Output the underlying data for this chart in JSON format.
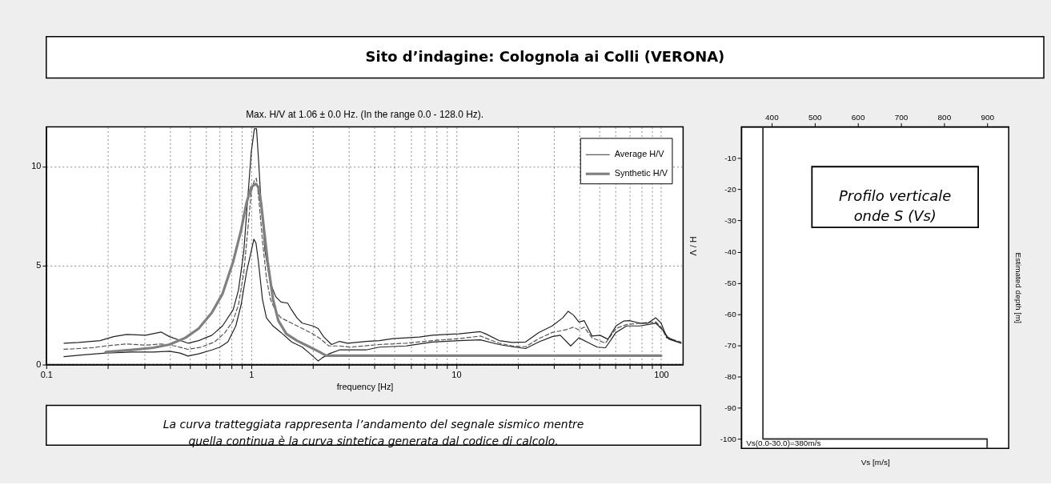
{
  "chart_data": [
    {
      "type": "other",
      "title": "Sito d’indagine: Colognola ai Colli (VERONA)"
    },
    {
      "type": "line",
      "title": "Max. H/V at 1.06 ± 0.0 Hz. (In the range 0.0 - 128.0 Hz).",
      "xlabel": "frequency [Hz]",
      "ylabel": "H / V",
      "log": "x",
      "xlim": [
        0.1,
        128
      ],
      "ylim": [
        0,
        12
      ],
      "xticks": [
        0.1,
        {
          "value": 0.2,
          "label": null
        },
        {
          "value": 0.3,
          "label": null
        },
        {
          "value": 0.4,
          "label": null
        },
        {
          "value": 0.5,
          "label": null
        },
        {
          "value": 0.6,
          "label": null
        },
        {
          "value": 0.7,
          "label": null
        },
        {
          "value": 0.8,
          "label": null
        },
        {
          "value": 0.9,
          "label": null
        },
        1,
        {
          "value": 2,
          "label": null
        },
        {
          "value": 3,
          "label": null
        },
        {
          "value": 4,
          "label": null
        },
        {
          "value": 5,
          "label": null
        },
        {
          "value": 6,
          "label": null
        },
        {
          "value": 7,
          "label": null
        },
        {
          "value": 8,
          "label": null
        },
        {
          "value": 9,
          "label": null
        },
        10,
        {
          "value": 20,
          "label": null
        },
        {
          "value": 30,
          "label": null
        },
        {
          "value": 40,
          "label": null
        },
        {
          "value": 50,
          "label": null
        },
        {
          "value": 60,
          "label": null
        },
        {
          "value": 70,
          "label": null
        },
        {
          "value": 80,
          "label": null
        },
        {
          "value": 90,
          "label": null
        },
        100
      ],
      "yticks": [
        0,
        5,
        10
      ],
      "grid": true,
      "legend": "top right",
      "line_style": "solid",
      "series": [
        {
          "name": "Average H/V",
          "color": "#555555",
          "line_style": "dashed",
          "x": [
            0.122,
            0.144,
            0.168,
            0.195,
            0.247,
            0.305,
            0.364,
            0.423,
            0.491,
            0.57,
            0.662,
            0.746,
            0.816,
            0.867,
            0.92,
            0.962,
            1.0,
            1.036,
            1.06,
            1.09,
            1.134,
            1.186,
            1.24,
            1.316,
            1.397,
            1.574,
            1.775,
            2.0,
            2.187,
            2.392,
            2.696,
            3.038,
            4.22,
            5.69,
            7.66,
            10.33,
            13.12,
            16.18,
            18.78,
            21.8,
            25.3,
            29.4,
            34.1,
            37.4,
            39.7,
            42.1,
            46.0,
            53.5,
            60.2,
            67.8,
            78.7,
            94.2,
            100,
            106.2,
            125
          ],
          "values": [
            0.77,
            0.81,
            0.85,
            0.94,
            1.04,
            0.98,
            1.04,
            0.94,
            0.77,
            0.88,
            1.14,
            1.62,
            2.22,
            3.03,
            4.65,
            6.8,
            8.69,
            9.3,
            9.4,
            8.3,
            6.26,
            4.38,
            3.3,
            2.69,
            2.36,
            2.09,
            1.82,
            1.55,
            1.28,
            0.94,
            0.94,
            0.88,
            1.01,
            1.08,
            1.21,
            1.31,
            1.44,
            1.08,
            0.94,
            0.9,
            1.31,
            1.62,
            1.75,
            1.89,
            1.75,
            1.89,
            1.35,
            1.08,
            1.82,
            2.02,
            2.09,
            2.15,
            1.89,
            1.35,
            1.14
          ]
        },
        {
          "color": "#222222",
          "x": [
            0.122,
            0.144,
            0.183,
            0.213,
            0.247,
            0.305,
            0.364,
            0.399,
            0.491,
            0.554,
            0.643,
            0.724,
            0.816,
            0.867,
            0.92,
            0.962,
            1.0,
            1.036,
            1.061,
            1.084,
            1.117,
            1.168,
            1.24,
            1.316,
            1.397,
            1.506,
            1.574,
            1.671,
            1.775,
            1.884,
            2.0,
            2.122,
            2.253,
            2.465,
            2.696,
            2.948,
            3.63,
            4.22,
            4.9,
            5.69,
            6.6,
            7.66,
            8.9,
            10.33,
            12.0,
            13.12,
            13.93,
            16.18,
            18.78,
            21.8,
            25.3,
            29.4,
            33.1,
            35.2,
            37.4,
            39.7,
            42.1,
            46.0,
            50.3,
            55.0,
            60.2,
            65.8,
            70.0,
            78.7,
            86.1,
            94.2,
            100,
            106.2,
            116.2,
            125
          ],
          "values": [
            1.08,
            1.12,
            1.21,
            1.41,
            1.52,
            1.48,
            1.64,
            1.41,
            1.08,
            1.21,
            1.48,
            1.95,
            2.76,
            3.77,
            5.72,
            8.42,
            10.71,
            11.9,
            11.9,
            10.44,
            8.15,
            5.72,
            4.11,
            3.43,
            3.16,
            3.1,
            2.76,
            2.36,
            2.09,
            2.02,
            1.95,
            1.82,
            1.41,
            1.01,
            1.17,
            1.08,
            1.17,
            1.21,
            1.31,
            1.35,
            1.39,
            1.48,
            1.52,
            1.55,
            1.62,
            1.66,
            1.55,
            1.21,
            1.12,
            1.14,
            1.62,
            1.95,
            2.36,
            2.69,
            2.49,
            2.15,
            2.22,
            1.44,
            1.48,
            1.28,
            1.95,
            2.2,
            2.22,
            2.09,
            2.09,
            2.36,
            2.09,
            1.41,
            1.21,
            1.08
          ]
        },
        {
          "color": "#222222",
          "x": [
            0.122,
            0.144,
            0.195,
            0.262,
            0.333,
            0.399,
            0.449,
            0.491,
            0.554,
            0.643,
            0.703,
            0.769,
            0.841,
            0.893,
            0.948,
            1.0,
            1.03,
            1.055,
            1.084,
            1.134,
            1.186,
            1.277,
            1.397,
            1.574,
            1.775,
            1.941,
            2.122,
            2.22,
            2.392,
            2.696,
            3.038,
            3.63,
            4.22,
            5.69,
            7.66,
            10.33,
            13.12,
            16.18,
            18.78,
            21.8,
            25.3,
            29.4,
            32.2,
            36.2,
            39.7,
            43.4,
            48.8,
            53.5,
            60.2,
            67.8,
            78.7,
            94.2,
            103.0,
            109.3,
            125
          ],
          "values": [
            0.4,
            0.47,
            0.58,
            0.63,
            0.63,
            0.67,
            0.58,
            0.43,
            0.54,
            0.74,
            0.88,
            1.14,
            1.95,
            3.03,
            4.65,
            5.72,
            6.33,
            6.13,
            5.19,
            3.3,
            2.36,
            1.95,
            1.62,
            1.14,
            0.88,
            0.54,
            0.18,
            0.34,
            0.54,
            0.74,
            0.74,
            0.74,
            0.88,
            0.94,
            1.14,
            1.21,
            1.25,
            1.01,
            0.9,
            0.81,
            1.14,
            1.41,
            1.48,
            0.94,
            1.35,
            1.14,
            0.88,
            0.85,
            1.62,
            1.95,
            1.95,
            2.09,
            1.68,
            1.28,
            1.08
          ]
        },
        {
          "name": "Synthetic H/V",
          "color": "#808080",
          "x": [
            0.195,
            0.262,
            0.333,
            0.399,
            0.477,
            0.554,
            0.643,
            0.724,
            0.816,
            0.893,
            0.948,
            1.0,
            1.052,
            1.084,
            1.117,
            1.151,
            1.203,
            1.277,
            1.356,
            1.483,
            1.671,
            1.884,
            2.122,
            2.322,
            100
          ],
          "values": [
            0.63,
            0.74,
            0.85,
            1.01,
            1.35,
            1.82,
            2.63,
            3.57,
            5.19,
            6.8,
            8.15,
            8.96,
            9.12,
            8.96,
            8.15,
            6.94,
            5.19,
            3.3,
            2.22,
            1.55,
            1.21,
            0.94,
            0.67,
            0.45,
            0.45
          ]
        }
      ]
    },
    {
      "type": "other",
      "annotations": [
        "La curva tratteggiata rappresenta l’andamento del segnale sismico mentre\nquella continua è la curva sintetica generata dal codice di calcolo."
      ]
    },
    {
      "type": "line",
      "xlabel": "Vs [m/s]",
      "ylabel": "Estimated depth [m]",
      "xlim": [
        330,
        950
      ],
      "ylim": [
        -103,
        0
      ],
      "xticks": [
        400,
        500,
        600,
        700,
        800,
        900
      ],
      "yticks": [
        -10,
        -20,
        -30,
        -40,
        -50,
        -60,
        -70,
        -80,
        -90,
        -100
      ],
      "series": [
        {
          "color": "#333333",
          "x": [
            380,
            380,
            900,
            900
          ],
          "values": [
            0,
            -100,
            -100,
            -103
          ]
        }
      ],
      "annotations": [
        "Profilo verticale\nonde S (Vs)",
        "Vs(0.0-30.0)=380m/s"
      ]
    }
  ]
}
